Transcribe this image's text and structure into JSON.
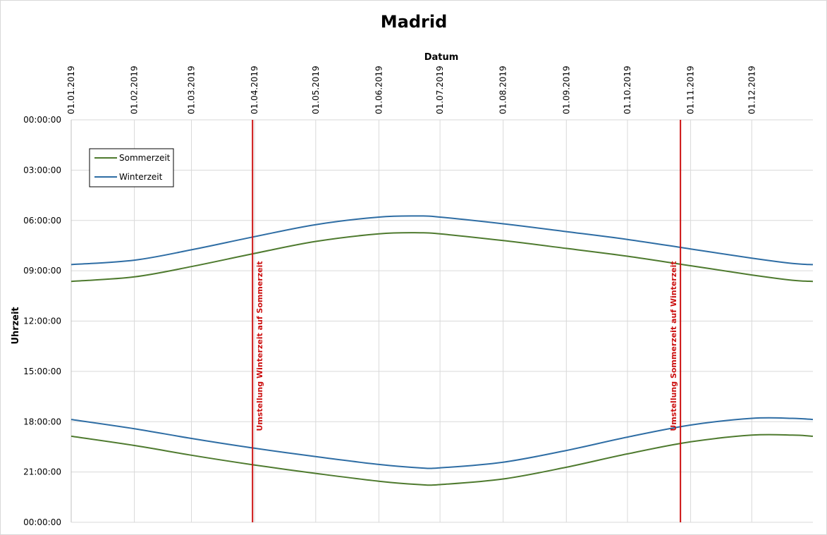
{
  "chart_data": {
    "type": "line",
    "title": "Madrid",
    "xlabel": "Datum",
    "ylabel": "Uhrzeit",
    "x_axis_position": "top",
    "xlim": [
      "01.01.2019",
      "31.12.2019"
    ],
    "x_ticks": [
      "01.01.2019",
      "01.02.2019",
      "01.03.2019",
      "01.04.2019",
      "01.05.2019",
      "01.06.2019",
      "01.07.2019",
      "01.08.2019",
      "01.09.2019",
      "01.10.2019",
      "01.11.2019",
      "01.12.2019"
    ],
    "ylim": [
      "00:00:00",
      "24:00:00"
    ],
    "y_reversed": true,
    "y_ticks": [
      "00:00:00",
      "03:00:00",
      "06:00:00",
      "09:00:00",
      "12:00:00",
      "15:00:00",
      "18:00:00",
      "21:00:00",
      "00:00:00"
    ],
    "grid": true,
    "legend_position": "top-left",
    "series": [
      {
        "name": "Sommerzeit",
        "color": "#4e7a2e",
        "x": [
          "01.01.2019",
          "01.02.2019",
          "01.03.2019",
          "01.04.2019",
          "01.05.2019",
          "01.06.2019",
          "21.06.2019",
          "01.07.2019",
          "01.08.2019",
          "01.09.2019",
          "01.10.2019",
          "01.11.2019",
          "01.12.2019",
          "21.12.2019",
          "31.12.2019"
        ],
        "sunrise": [
          "09:38",
          "09:22",
          "08:45",
          "07:58",
          "07:15",
          "06:48",
          "06:44",
          "06:48",
          "07:12",
          "07:40",
          "08:08",
          "08:42",
          "09:15",
          "09:34",
          "09:38"
        ],
        "sunset": [
          "18:52",
          "19:25",
          "20:00",
          "20:35",
          "21:05",
          "21:33",
          "21:45",
          "21:45",
          "21:25",
          "20:43",
          "19:55",
          "19:12",
          "18:48",
          "18:48",
          "18:52"
        ]
      },
      {
        "name": "Winterzeit",
        "color": "#2e6da4",
        "x": [
          "01.01.2019",
          "01.02.2019",
          "01.03.2019",
          "01.04.2019",
          "01.05.2019",
          "01.06.2019",
          "21.06.2019",
          "01.07.2019",
          "01.08.2019",
          "01.09.2019",
          "01.10.2019",
          "01.11.2019",
          "01.12.2019",
          "21.12.2019",
          "31.12.2019"
        ],
        "sunrise": [
          "08:38",
          "08:22",
          "07:45",
          "06:58",
          "06:15",
          "05:48",
          "05:44",
          "05:48",
          "06:12",
          "06:40",
          "07:08",
          "07:42",
          "08:15",
          "08:34",
          "08:38"
        ],
        "sunset": [
          "17:52",
          "18:25",
          "19:00",
          "19:35",
          "20:05",
          "20:33",
          "20:45",
          "20:45",
          "20:25",
          "19:43",
          "18:55",
          "18:12",
          "17:48",
          "17:48",
          "17:52"
        ]
      }
    ],
    "annotations": [
      {
        "x": "31.03.2019",
        "label": "Umstellung Winterzeit auf Sommerzeit",
        "color": "#cc1111"
      },
      {
        "x": "27.10.2019",
        "label": "Umstellung Sommerzeit auf Winterzeit",
        "color": "#cc1111"
      }
    ]
  }
}
